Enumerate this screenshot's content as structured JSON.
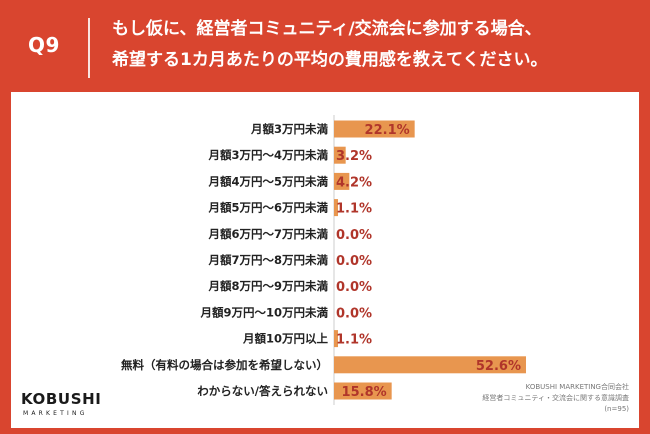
{
  "header": {
    "q_label": "Q9",
    "question": "もし仮に、経営者コミュニティ/交流会に参加する場合、\n希望する1カ月あたりの平均の費用感を教えてください。"
  },
  "logo": {
    "main": "KOBUSHI",
    "sub": "MARKETING"
  },
  "source": {
    "company": "KOBUSHI MARKETING合同会社",
    "survey": "経営者コミュニティ・交流会に関する意識調査",
    "n": "(n=95)"
  },
  "colors": {
    "background": "#d9452f",
    "bar": "#e8964f",
    "label": "#b0352a",
    "text": "#222222"
  },
  "chart_data": {
    "type": "bar",
    "orientation": "horizontal",
    "categories": [
      "月額3万円未満",
      "月額3万円〜4万円未満",
      "月額4万円〜5万円未満",
      "月額5万円〜6万円未満",
      "月額6万円〜7万円未満",
      "月額7万円〜8万円未満",
      "月額8万円〜9万円未満",
      "月額9万円〜10万円未満",
      "月額10万円以上",
      "無料（有料の場合は参加を希望しない）",
      "わからない/答えられない"
    ],
    "values": [
      22.1,
      3.2,
      4.2,
      1.1,
      0.0,
      0.0,
      0.0,
      0.0,
      1.1,
      52.6,
      15.8
    ],
    "value_labels": [
      "22.1%",
      "3.2%",
      "4.2%",
      "1.1%",
      "0.0%",
      "0.0%",
      "0.0%",
      "0.0%",
      "1.1%",
      "52.6%",
      "15.8%"
    ],
    "xlim": [
      0,
      100
    ],
    "grid": false,
    "legend": "none"
  }
}
